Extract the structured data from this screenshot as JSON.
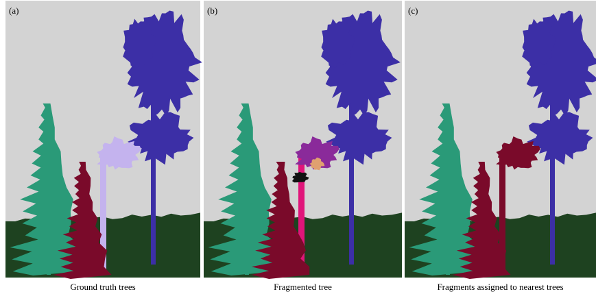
{
  "panels": [
    {
      "label": "(a)",
      "caption": "Ground truth trees"
    },
    {
      "label": "(b)",
      "caption": "Fragmented tree"
    },
    {
      "label": "(c)",
      "caption": "Fragments assigned to nearest trees"
    }
  ]
}
